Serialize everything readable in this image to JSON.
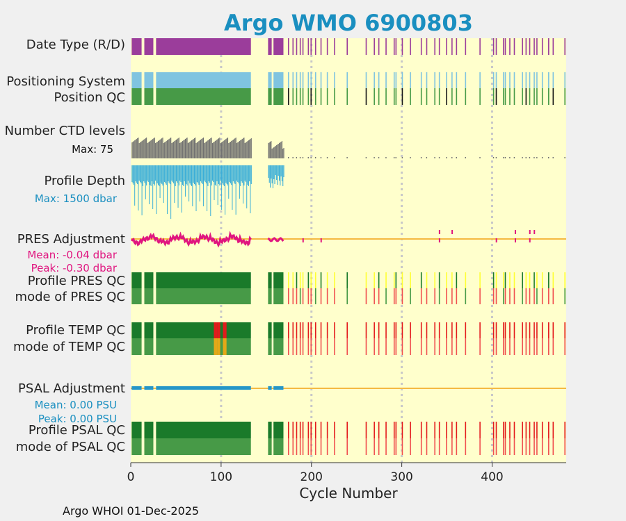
{
  "chart_data": {
    "type": "bar",
    "title": "Argo WMO 6900803",
    "xlabel": "Cycle Number",
    "xlim": [
      0,
      482
    ],
    "xticks": [
      0,
      100,
      200,
      300,
      400
    ],
    "xtick_labels": [
      "0",
      "100",
      "200",
      "300",
      "400"
    ],
    "grid_x": [
      100,
      200,
      300,
      400
    ],
    "footer": "Argo WHOI 01-Dec-2025",
    "rows": [
      {
        "key": "date_type",
        "label": "Date Type (R/D)"
      },
      {
        "key": "positioning_system",
        "label": "Positioning System"
      },
      {
        "key": "position_qc",
        "label": "Position QC"
      },
      {
        "key": "n_ctd_levels",
        "label": "Number CTD levels",
        "annotation": "Max: 75"
      },
      {
        "key": "profile_depth",
        "label": "Profile Depth",
        "annotation": "Max: 1500 dbar"
      },
      {
        "key": "pres_adjustment",
        "label": "PRES Adjustment",
        "mean": "Mean: -0.04 dbar",
        "peak": "Peak: -0.30 dbar"
      },
      {
        "key": "profile_pres_qc",
        "label": "Profile PRES QC"
      },
      {
        "key": "mode_pres_qc",
        "label": "mode of PRES QC"
      },
      {
        "key": "profile_temp_qc",
        "label": "Profile TEMP QC"
      },
      {
        "key": "mode_temp_qc",
        "label": "mode of TEMP QC"
      },
      {
        "key": "psal_adjustment",
        "label": "PSAL Adjustment",
        "mean": "Mean: 0.00 PSU",
        "peak": "Peak: 0.00 PSU"
      },
      {
        "key": "profile_psal_qc",
        "label": "Profile PSAL QC"
      },
      {
        "key": "mode_psal_qc",
        "label": "mode of PSAL QC"
      }
    ],
    "early_segments": [
      [
        1,
        12
      ],
      [
        15,
        25
      ],
      [
        28,
        133
      ],
      [
        152,
        156
      ],
      [
        158,
        169
      ]
    ],
    "late_cycles": [
      174,
      179,
      183,
      187,
      190,
      196,
      199,
      204,
      210,
      217,
      225,
      239,
      260,
      269,
      274,
      282,
      291,
      293,
      300,
      309,
      321,
      327,
      336,
      341,
      349,
      355,
      360,
      370,
      386,
      401,
      404,
      412,
      414,
      419,
      424,
      433,
      437,
      441,
      446,
      449,
      455,
      462,
      467,
      480
    ],
    "temp_bad_cycles": [
      92,
      94,
      96,
      97,
      102,
      104
    ],
    "pres_adjustment_spikes": [
      341,
      355,
      425,
      441,
      446
    ],
    "colors": {
      "title": "#1a8fc0",
      "plot_bg": "#ffffcc",
      "purple": "#9b3d9b",
      "light_blue": "#7fc4e0",
      "green": "#479a47",
      "dark_green": "#1a7a2a",
      "red": "#e31a1c",
      "light_red": "#f05050",
      "yellow": "#ffff33",
      "orange_line": "#f5b942",
      "gray": "#707070",
      "cyan": "#3aaed8",
      "magenta": "#e0157f",
      "adj_blue": "#2596c8",
      "grid": "#c8c8c8"
    }
  }
}
